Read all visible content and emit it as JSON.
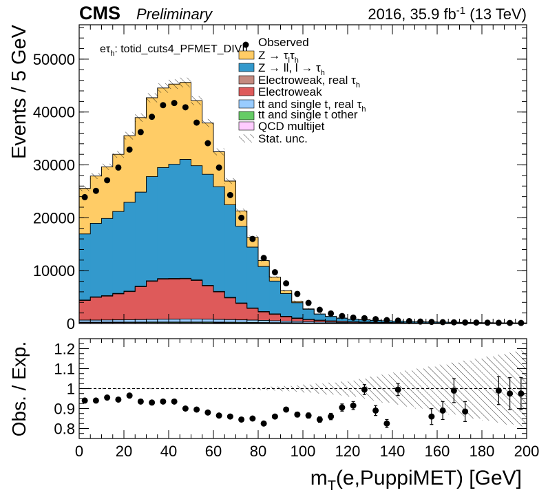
{
  "header": {
    "experiment": "CMS",
    "status": "Preliminary",
    "lumi_prefix": "2016, 35.9 fb",
    "lumi_exp": "-1",
    "lumi_suffix": " (13 TeV)"
  },
  "chart_data": [
    {
      "type": "stacked-histogram",
      "channel_label_prefix": "eτ",
      "channel_label_sub": "h",
      "channel_label_suffix": ": totid_cuts4_PFMET_DIVIL",
      "ylabel": "Events / 5 GeV",
      "xlim": [
        0,
        200
      ],
      "ylim": [
        0,
        56500
      ],
      "y_ticks": [
        0,
        10000,
        20000,
        30000,
        40000,
        50000
      ],
      "bin_width": 5,
      "bin_lows": [
        0,
        5,
        10,
        15,
        20,
        25,
        30,
        35,
        40,
        45,
        50,
        55,
        60,
        65,
        70,
        75,
        80,
        85,
        90,
        95,
        100,
        105,
        110,
        115,
        120,
        125,
        130,
        135,
        140,
        145,
        150,
        155,
        160,
        165,
        170,
        175,
        180,
        185,
        190,
        195
      ],
      "stack_order": [
        "qcd",
        "tt_other",
        "tt_real",
        "ew",
        "ew_real",
        "zll",
        "ztt"
      ],
      "series": [
        {
          "key": "qcd",
          "name": "QCD multijet",
          "color": "#ffccff",
          "values": [
            150,
            150,
            150,
            150,
            150,
            150,
            150,
            150,
            150,
            150,
            150,
            140,
            130,
            120,
            110,
            100,
            90,
            80,
            70,
            60,
            50,
            40,
            30,
            25,
            20,
            15,
            10,
            8,
            6,
            5,
            4,
            3,
            2,
            2,
            1,
            1,
            1,
            1,
            1,
            1
          ]
        },
        {
          "key": "tt_other",
          "name": "tt and single t other",
          "color": "#66cc66",
          "values": [
            100,
            100,
            110,
            110,
            120,
            120,
            130,
            130,
            140,
            140,
            140,
            140,
            130,
            130,
            120,
            110,
            100,
            90,
            80,
            70,
            60,
            50,
            45,
            40,
            35,
            30,
            25,
            20,
            18,
            15,
            12,
            10,
            8,
            6,
            5,
            4,
            3,
            2,
            2,
            1
          ]
        },
        {
          "key": "tt_real",
          "name": "tt and single t, real  τ",
          "sub": "h",
          "color": "#99ccff",
          "values": [
            400,
            400,
            420,
            440,
            460,
            480,
            500,
            520,
            540,
            560,
            560,
            540,
            520,
            500,
            470,
            440,
            400,
            360,
            320,
            280,
            240,
            200,
            170,
            140,
            120,
            100,
            80,
            70,
            60,
            50,
            40,
            35,
            30,
            25,
            20,
            15,
            12,
            10,
            8,
            6
          ]
        },
        {
          "key": "ew",
          "name": "Electroweak",
          "color": "#de5a5a",
          "values": [
            3700,
            4300,
            4500,
            4900,
            5300,
            6200,
            7200,
            7600,
            7600,
            7600,
            7300,
            6300,
            5200,
            4100,
            3100,
            2200,
            1600,
            1200,
            800,
            550,
            400,
            300,
            220,
            180,
            140,
            120,
            100,
            85,
            70,
            60,
            50,
            45,
            40,
            35,
            30,
            25,
            22,
            20,
            18,
            16
          ]
        },
        {
          "key": "ew_real",
          "name": "Electroweak, real  τ",
          "sub": "h",
          "color": "#c48a7f",
          "values": [
            100,
            100,
            100,
            100,
            100,
            100,
            100,
            100,
            100,
            100,
            100,
            100,
            100,
            100,
            100,
            100,
            100,
            100,
            100,
            80,
            60,
            50,
            40,
            30,
            25,
            20,
            18,
            15,
            12,
            10,
            8,
            7,
            6,
            5,
            4,
            3,
            3,
            2,
            2,
            2
          ]
        },
        {
          "key": "zll",
          "name": "Z → ll, l → τ",
          "sub": "h",
          "color": "#3399cc",
          "values": [
            12500,
            13900,
            14600,
            15500,
            16800,
            17800,
            19700,
            21000,
            21600,
            22500,
            21600,
            21000,
            19800,
            17500,
            14500,
            11500,
            8500,
            6200,
            4300,
            2900,
            1890,
            1160,
            840,
            600,
            480,
            420,
            380,
            330,
            285,
            255,
            220,
            195,
            175,
            155,
            140,
            125,
            110,
            95,
            80,
            70
          ]
        },
        {
          "key": "ztt",
          "name": "Z → τ τ",
          "color": "#ffcc66",
          "values": [
            8600,
            8950,
            9760,
            10800,
            12600,
            14100,
            14920,
            15050,
            15150,
            14550,
            12300,
            9700,
            6600,
            4500,
            2900,
            1850,
            1110,
            750,
            560,
            250,
            70,
            0,
            0,
            0,
            0,
            0,
            0,
            0,
            0,
            0,
            0,
            0,
            0,
            0,
            0,
            0,
            0,
            0,
            0,
            0
          ]
        }
      ],
      "observed": {
        "name": "Observed",
        "x": [
          2.5,
          7.5,
          12.5,
          17.5,
          22.5,
          27.5,
          32.5,
          37.5,
          42.5,
          47.5,
          52.5,
          57.5,
          62.5,
          67.5,
          72.5,
          77.5,
          82.5,
          87.5,
          92.5,
          97.5,
          102.5,
          107.5,
          112.5,
          117.5,
          122.5,
          127.5,
          132.5,
          137.5,
          142.5,
          147.5,
          152.5,
          157.5,
          162.5,
          167.5,
          172.5,
          177.5,
          182.5,
          187.5,
          192.5,
          197.5
        ],
        "y": [
          23900,
          25100,
          27100,
          29500,
          32900,
          36200,
          39100,
          41300,
          41700,
          40900,
          38000,
          34100,
          29500,
          24300,
          20000,
          16000,
          12400,
          9700,
          7600,
          5600,
          3900,
          2600,
          1900,
          1420,
          1120,
          1010,
          830,
          650,
          550,
          460,
          370,
          310,
          260,
          230,
          200,
          180,
          160,
          140,
          120,
          110
        ]
      },
      "legend": {
        "observed": "Observed",
        "ztt_text": "Z → τ",
        "ztt_sub": "l",
        "ztt_text2": "τ",
        "ztt_sub2": "h",
        "zll_text": "Z → ll, l → τ",
        "zll_sub": "h",
        "ew_real_text": "Electroweak, real  τ",
        "ew_real_sub": "h",
        "ew_text": "Electroweak",
        "tt_real_text": "tt and single t, real  τ",
        "tt_real_sub": "h",
        "tt_other_text": "tt and single t other",
        "qcd_text": "QCD multijet",
        "unc_text": "Stat. unc.",
        "placement": "top-right"
      }
    },
    {
      "type": "ratio",
      "ylabel": "Obs. / Exp.",
      "xlabel_prefix": "m",
      "xlabel_sub": "T",
      "xlabel_suffix": "(e,PuppiMET) [GeV]",
      "xlim": [
        0,
        200
      ],
      "ylim": [
        0.75,
        1.25
      ],
      "y_ticks": [
        0.8,
        0.9,
        1,
        1.1,
        1.2
      ],
      "x_ticks": [
        0,
        20,
        40,
        60,
        80,
        100,
        120,
        140,
        160,
        180,
        200
      ],
      "reference_line": 1,
      "x": [
        2.5,
        7.5,
        12.5,
        17.5,
        22.5,
        27.5,
        32.5,
        37.5,
        42.5,
        47.5,
        52.5,
        57.5,
        62.5,
        67.5,
        72.5,
        77.5,
        82.5,
        87.5,
        92.5,
        97.5,
        102.5,
        107.5,
        112.5,
        117.5,
        122.5,
        127.5,
        132.5,
        137.5,
        142.5,
        147.5,
        152.5,
        157.5,
        162.5,
        167.5,
        172.5,
        177.5,
        182.5,
        187.5,
        192.5,
        197.5
      ],
      "y": [
        0.94,
        0.94,
        0.955,
        0.945,
        0.965,
        0.935,
        0.93,
        0.935,
        0.935,
        0.9,
        0.895,
        0.88,
        0.865,
        0.86,
        0.845,
        0.85,
        0.825,
        0.86,
        0.895,
        0.87,
        0.865,
        0.845,
        0.86,
        0.905,
        0.915,
        0.995,
        0.89,
        0.825,
        0.995,
        null,
        null,
        0.86,
        0.89,
        0.99,
        0.885,
        null,
        null,
        0.99,
        0.975,
        0.975
      ],
      "err": [
        0.005,
        0.005,
        0.005,
        0.005,
        0.005,
        0.005,
        0.005,
        0.005,
        0.005,
        0.005,
        0.005,
        0.005,
        0.005,
        0.006,
        0.007,
        0.008,
        0.009,
        0.01,
        0.011,
        0.012,
        0.013,
        0.014,
        0.016,
        0.018,
        0.02,
        0.025,
        0.025,
        0.02,
        0.03,
        0,
        0,
        0.04,
        0.045,
        0.06,
        0.05,
        0,
        0,
        0.07,
        0.08,
        0.08
      ],
      "unc_band": [
        0.003,
        0.003,
        0.003,
        0.003,
        0.003,
        0.003,
        0.003,
        0.003,
        0.003,
        0.003,
        0.003,
        0.003,
        0.003,
        0.004,
        0.005,
        0.006,
        0.008,
        0.01,
        0.013,
        0.016,
        0.02,
        0.025,
        0.03,
        0.035,
        0.04,
        0.05,
        0.06,
        0.07,
        0.08,
        0.09,
        0.1,
        0.11,
        0.12,
        0.13,
        0.14,
        0.15,
        0.16,
        0.17,
        0.18,
        0.19
      ]
    }
  ]
}
